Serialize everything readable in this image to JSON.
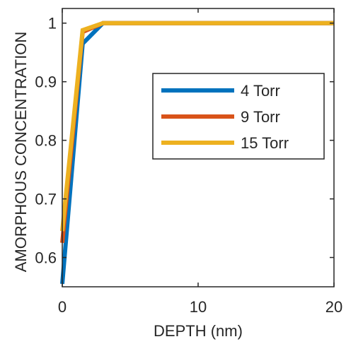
{
  "chart_data": {
    "type": "line",
    "title": "",
    "xlabel": "DEPTH (nm)",
    "ylabel": "AMORPHOUS CONCENTRATION",
    "xlim": [
      0,
      20
    ],
    "ylim": [
      0.55,
      1.025
    ],
    "xticks": [
      0,
      10,
      20
    ],
    "yticks": [
      0.6,
      0.7,
      0.8,
      0.9,
      1
    ],
    "ytick_labels": [
      "0.6",
      "0.7",
      "0.8",
      "0.9",
      "1"
    ],
    "xtick_labels": [
      "0",
      "10",
      "20"
    ],
    "grid": false,
    "legend_position": "right-center",
    "series": [
      {
        "name": "4 Torr",
        "color": "#0072BD",
        "x": [
          0,
          1.5,
          3,
          20
        ],
        "y": [
          0.555,
          0.965,
          1.0,
          1.0
        ]
      },
      {
        "name": "9 Torr",
        "color": "#D95319",
        "x": [
          0,
          1.5,
          3,
          20
        ],
        "y": [
          0.625,
          0.985,
          1.0,
          1.0
        ]
      },
      {
        "name": "15 Torr",
        "color": "#EDB120",
        "x": [
          0,
          1.5,
          3,
          20
        ],
        "y": [
          0.645,
          0.988,
          1.0,
          1.0
        ]
      }
    ]
  }
}
